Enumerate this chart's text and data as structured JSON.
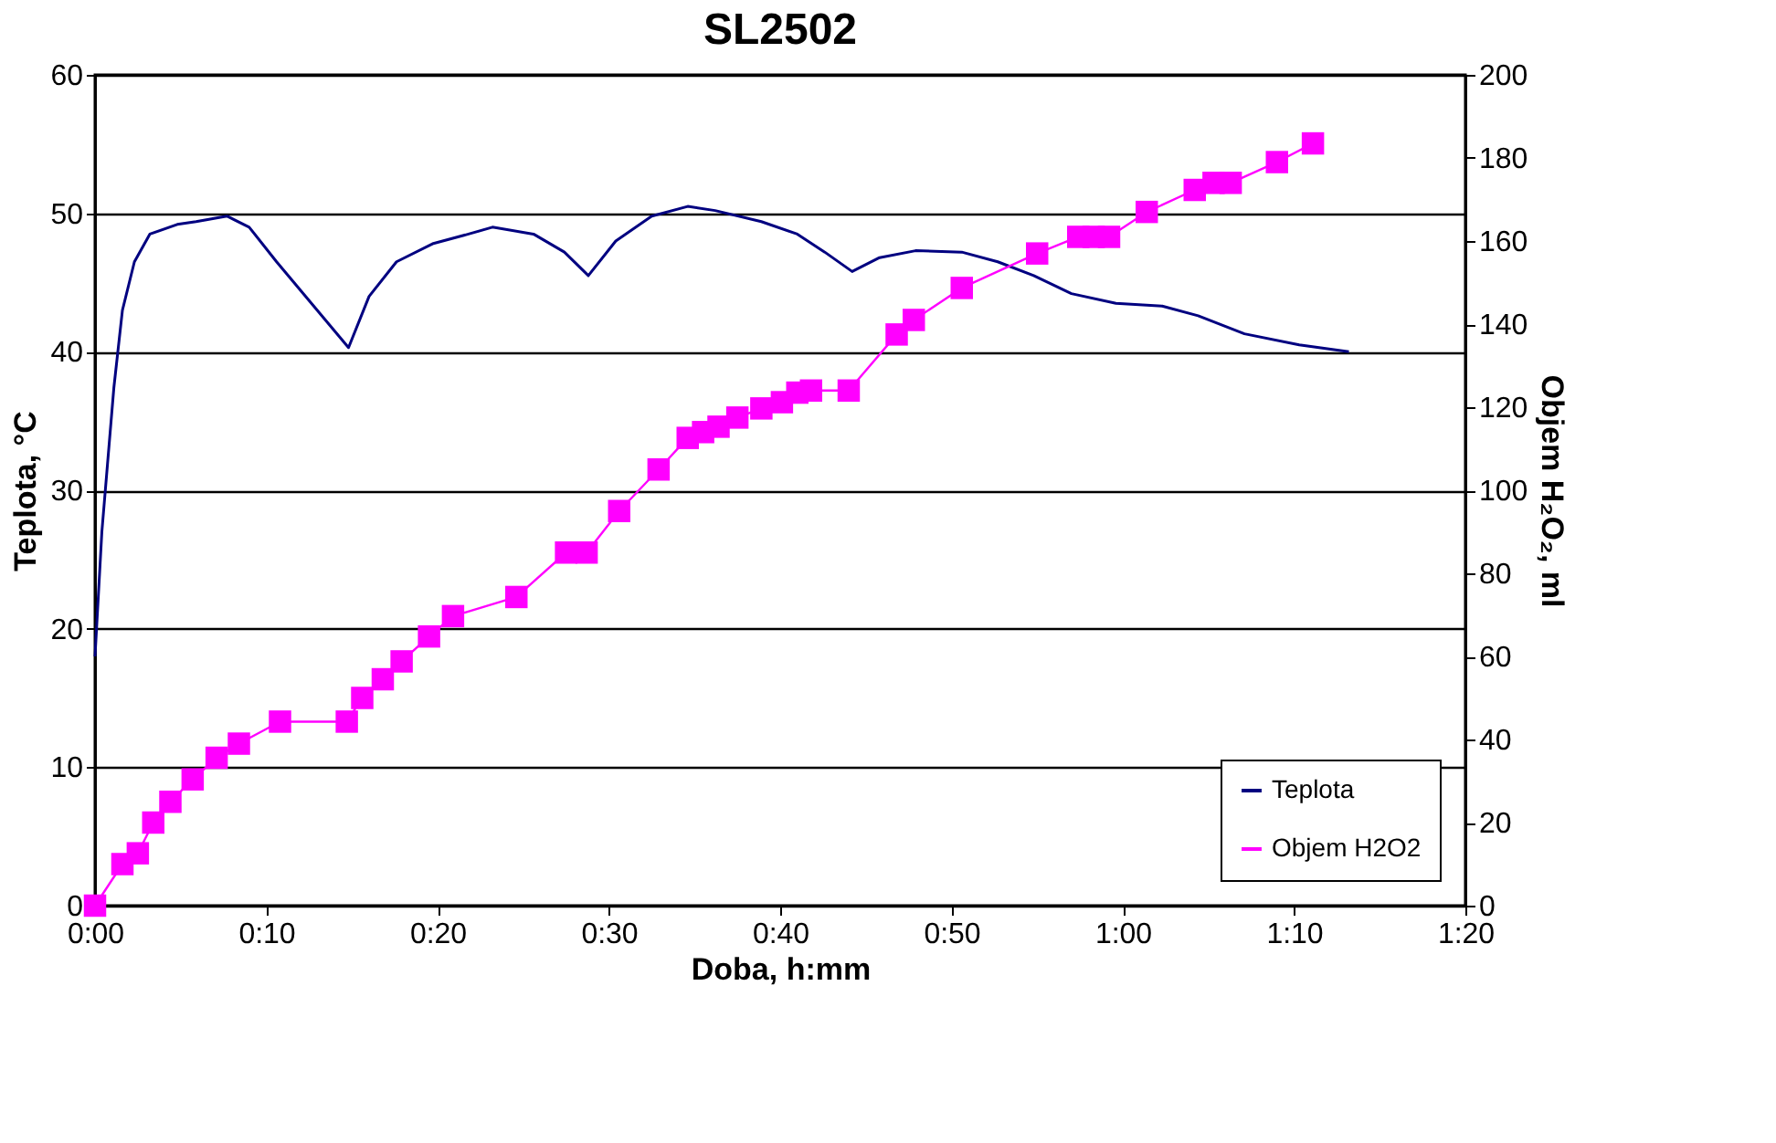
{
  "chart_data": {
    "type": "line",
    "title": "SL2502",
    "xlabel": "Doba, h:mm",
    "ylabel": "Teplota, °C",
    "y2label": "Objem H₂O₂, ml",
    "xlim": [
      0,
      80
    ],
    "xticks": [
      {
        "value": 0,
        "label": "0:00"
      },
      {
        "value": 10,
        "label": "0:10"
      },
      {
        "value": 20,
        "label": "0:20"
      },
      {
        "value": 30,
        "label": "0:30"
      },
      {
        "value": 40,
        "label": "0:40"
      },
      {
        "value": 50,
        "label": "0:50"
      },
      {
        "value": 60,
        "label": "1:00"
      },
      {
        "value": 70,
        "label": "1:10"
      },
      {
        "value": 80,
        "label": "1:20"
      }
    ],
    "ylim": [
      0,
      60
    ],
    "yticks": [
      0,
      10,
      20,
      30,
      40,
      50,
      60
    ],
    "y2lim": [
      0,
      200
    ],
    "y2ticks": [
      0,
      20,
      40,
      60,
      80,
      100,
      120,
      140,
      160,
      180,
      200
    ],
    "grid": "y",
    "legend": "bottom right",
    "series": [
      {
        "name": "Teplota",
        "color": "#000080",
        "marker": "none",
        "line_style": "solid",
        "x": [
          0,
          0.4,
          1.1,
          1.6,
          2.3,
          3.2,
          4.8,
          5.9,
          7.7,
          9.0,
          10.6,
          14.8,
          16.0,
          17.6,
          19.7,
          21.8,
          23.2,
          25.6,
          27.4,
          28.8,
          30.4,
          32.5,
          34.6,
          36.2,
          38.9,
          41.0,
          42.6,
          44.2,
          45.8,
          47.9,
          50.6,
          52.7,
          54.8,
          57.0,
          59.6,
          62.3,
          64.4,
          67.1,
          70.3,
          73.2
        ],
        "values": [
          18,
          27,
          37.4,
          43,
          46.5,
          48.5,
          49.2,
          49.4,
          49.8,
          49,
          46.5,
          40.3,
          44,
          46.5,
          47.8,
          48.5,
          49,
          48.5,
          47.2,
          45.5,
          48,
          49.8,
          50.5,
          50.2,
          49.4,
          48.5,
          47.2,
          45.8,
          46.8,
          47.3,
          47.2,
          46.5,
          45.5,
          44.2,
          43.5,
          43.3,
          42.6,
          41.3,
          40.5,
          40
        ]
      },
      {
        "name": "Objem H2O2",
        "axis": "y2",
        "color": "#ff00ff",
        "marker": "square",
        "line_style": "solid",
        "x": [
          0,
          1.6,
          2.5,
          3.4,
          4.4,
          5.7,
          7.1,
          8.4,
          10.8,
          14.7,
          15.6,
          16.8,
          17.9,
          19.5,
          20.9,
          24.6,
          27.5,
          28.7,
          30.6,
          32.9,
          34.6,
          35.5,
          36.4,
          37.5,
          38.9,
          40.1,
          41.0,
          41.8,
          44.0,
          46.8,
          47.8,
          50.6,
          55.0,
          57.4,
          58.3,
          59.2,
          61.4,
          64.2,
          65.3,
          66.3,
          69.0,
          71.1
        ],
        "values": [
          0,
          10,
          12.6,
          20,
          25,
          30.4,
          35.6,
          39,
          44.3,
          44.3,
          50,
          54.5,
          58.8,
          64.8,
          69.7,
          74.3,
          85,
          85,
          95,
          105,
          112.6,
          114,
          115.3,
          117.5,
          119.7,
          121.2,
          123.5,
          124,
          124,
          137.5,
          141,
          148.7,
          157,
          161,
          161,
          161,
          167,
          172.3,
          174,
          174,
          179,
          183.5
        ]
      }
    ]
  }
}
